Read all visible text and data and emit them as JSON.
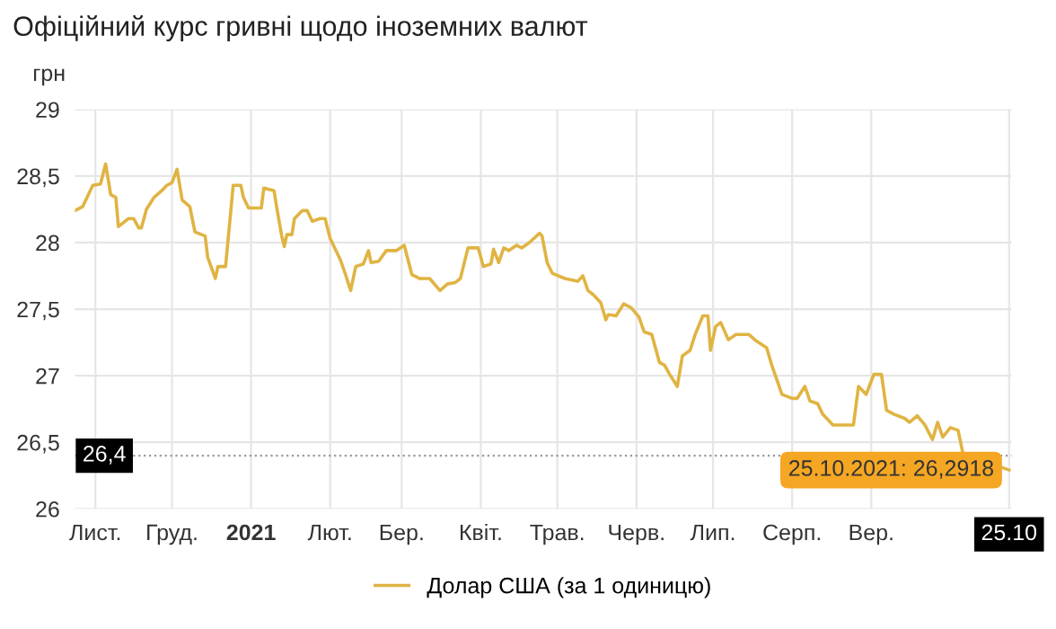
{
  "chart_data": {
    "type": "line",
    "title": "Офіційний курс гривні щодо іноземних валют",
    "ylabel": "грн",
    "x": [
      "2020-10-24",
      "2020-10-27",
      "2020-10-31",
      "2020-11-03",
      "2020-11-05",
      "2020-11-07",
      "2020-11-09",
      "2020-11-10",
      "2020-11-14",
      "2020-11-16",
      "2020-11-18",
      "2020-11-19",
      "2020-11-21",
      "2020-11-24",
      "2020-11-27",
      "2020-11-29",
      "2020-12-01",
      "2020-12-03",
      "2020-12-05",
      "2020-12-08",
      "2020-12-10",
      "2020-12-14",
      "2020-12-15",
      "2020-12-18",
      "2020-12-19",
      "2020-12-22",
      "2020-12-25",
      "2020-12-28",
      "2020-12-29",
      "2020-12-31",
      "2021-01-05",
      "2021-01-06",
      "2021-01-10",
      "2021-01-11",
      "2021-01-13",
      "2021-01-14",
      "2021-01-15",
      "2021-01-17",
      "2021-01-18",
      "2021-01-21",
      "2021-01-23",
      "2021-01-25",
      "2021-01-28",
      "2021-01-30",
      "2021-02-01",
      "2021-02-05",
      "2021-02-07",
      "2021-02-09",
      "2021-02-11",
      "2021-02-14",
      "2021-02-16",
      "2021-02-17",
      "2021-02-20",
      "2021-02-23",
      "2021-02-27",
      "2021-03-02",
      "2021-03-05",
      "2021-03-08",
      "2021-03-12",
      "2021-03-16",
      "2021-03-19",
      "2021-03-22",
      "2021-03-24",
      "2021-03-27",
      "2021-03-31",
      "2021-04-02",
      "2021-04-05",
      "2021-04-06",
      "2021-04-08",
      "2021-04-10",
      "2021-04-12",
      "2021-04-15",
      "2021-04-17",
      "2021-04-20",
      "2021-04-24",
      "2021-04-25",
      "2021-04-27",
      "2021-04-29",
      "2021-05-04",
      "2021-05-09",
      "2021-05-11",
      "2021-05-13",
      "2021-05-15",
      "2021-05-18",
      "2021-05-20",
      "2021-05-21",
      "2021-05-24",
      "2021-05-27",
      "2021-05-30",
      "2021-06-02",
      "2021-06-04",
      "2021-06-07",
      "2021-06-10",
      "2021-06-12",
      "2021-06-14",
      "2021-06-17",
      "2021-06-19",
      "2021-06-22",
      "2021-06-24",
      "2021-06-27",
      "2021-06-29",
      "2021-06-30",
      "2021-07-02",
      "2021-07-04",
      "2021-07-07",
      "2021-07-10",
      "2021-07-15",
      "2021-07-18",
      "2021-07-22",
      "2021-07-24",
      "2021-07-26",
      "2021-07-28",
      "2021-08-01",
      "2021-08-03",
      "2021-08-06",
      "2021-08-08",
      "2021-08-11",
      "2021-08-13",
      "2021-08-17",
      "2021-08-21",
      "2021-08-25",
      "2021-08-27",
      "2021-08-30",
      "2021-09-02",
      "2021-09-05",
      "2021-09-07",
      "2021-09-10",
      "2021-09-14",
      "2021-09-16",
      "2021-09-19",
      "2021-09-22",
      "2021-09-25",
      "2021-09-27",
      "2021-09-29",
      "2021-10-02",
      "2021-10-05",
      "2021-10-07",
      "2021-10-25"
    ],
    "series": [
      {
        "name": "Долар США (за 1 одиницю)",
        "color": "#e0b443",
        "values": [
          28.24,
          28.27,
          28.43,
          28.44,
          28.59,
          28.36,
          28.34,
          28.12,
          28.18,
          28.18,
          28.11,
          28.11,
          28.25,
          28.34,
          28.39,
          28.43,
          28.45,
          28.55,
          28.32,
          28.27,
          28.08,
          28.05,
          27.89,
          27.73,
          27.82,
          27.82,
          28.43,
          28.43,
          28.34,
          28.26,
          28.26,
          28.41,
          28.39,
          28.27,
          28.05,
          27.97,
          28.06,
          28.06,
          28.18,
          28.24,
          28.24,
          28.16,
          28.18,
          28.18,
          28.03,
          27.87,
          27.76,
          27.64,
          27.82,
          27.84,
          27.94,
          27.85,
          27.86,
          27.94,
          27.94,
          27.98,
          27.76,
          27.73,
          27.73,
          27.64,
          27.69,
          27.7,
          27.73,
          27.96,
          27.96,
          27.82,
          27.84,
          27.95,
          27.85,
          27.96,
          27.94,
          27.98,
          27.96,
          28.0,
          28.07,
          28.05,
          27.85,
          27.77,
          27.73,
          27.71,
          27.75,
          27.64,
          27.61,
          27.55,
          27.42,
          27.46,
          27.45,
          27.54,
          27.51,
          27.44,
          27.33,
          27.31,
          27.1,
          27.08,
          27.01,
          26.92,
          27.15,
          27.19,
          27.31,
          27.45,
          27.45,
          27.19,
          27.37,
          27.4,
          27.27,
          27.31,
          27.31,
          27.26,
          27.21,
          27.08,
          26.97,
          26.86,
          26.83,
          26.83,
          26.92,
          26.81,
          26.79,
          26.71,
          26.63,
          26.63,
          26.63,
          26.92,
          26.86,
          27.01,
          27.01,
          26.74,
          26.71,
          26.68,
          26.65,
          26.7,
          26.63,
          26.52,
          26.65,
          26.54,
          26.61,
          26.59,
          26.41,
          26.2918
        ]
      }
    ],
    "xlim": [
      "2020-10-24",
      "2021-10-26"
    ],
    "ylim": [
      26,
      29
    ],
    "xticks": [
      {
        "value": "2020-11-01",
        "label": "Лист."
      },
      {
        "value": "2020-12-01",
        "label": "Груд."
      },
      {
        "value": "2021-01-01",
        "label": "2021"
      },
      {
        "value": "2021-02-01",
        "label": "Лют."
      },
      {
        "value": "2021-03-01",
        "label": "Бер."
      },
      {
        "value": "2021-04-01",
        "label": "Квіт."
      },
      {
        "value": "2021-05-01",
        "label": "Трав."
      },
      {
        "value": "2021-06-01",
        "label": "Черв."
      },
      {
        "value": "2021-07-01",
        "label": "Лип."
      },
      {
        "value": "2021-08-01",
        "label": "Серп."
      },
      {
        "value": "2021-09-01",
        "label": "Вер."
      },
      {
        "value": "2021-10-25",
        "label": "25.10"
      }
    ],
    "yticks": [
      26,
      {
        "value": 26.5,
        "label": "26,5"
      },
      27,
      {
        "value": 27.5,
        "label": "27,5"
      },
      28,
      {
        "value": 28.5,
        "label": "28,5"
      },
      29
    ],
    "ref_lines": [
      {
        "axis": "y",
        "value": 26.4,
        "label": "26,4",
        "color": "#999999",
        "line_style": "dotted"
      }
    ],
    "annotations": [
      {
        "text": "25.10.2021: 26,2918",
        "x": "2021-10-25",
        "y": 26.2918
      }
    ],
    "grid": true,
    "legend": "bottom",
    "marker": "none",
    "line_style": "solid"
  }
}
